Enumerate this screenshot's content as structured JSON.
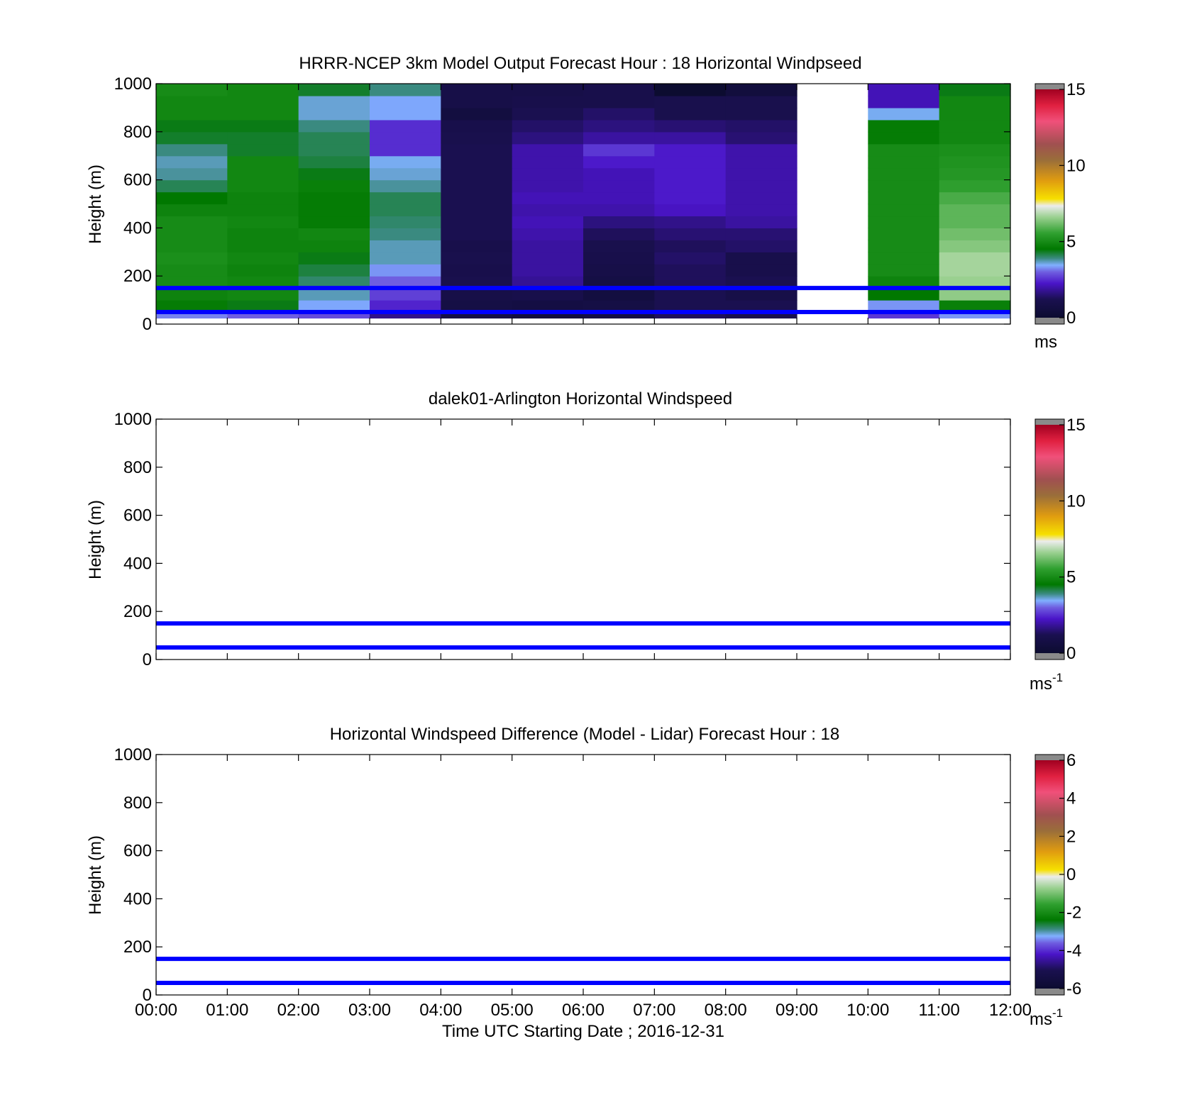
{
  "figure": {
    "x_tick_labels": [
      "00:00",
      "01:00",
      "02:00",
      "03:00",
      "04:00",
      "05:00",
      "06:00",
      "07:00",
      "08:00",
      "09:00",
      "10:00",
      "11:00",
      "12:00"
    ],
    "x_label": "Time UTC  Starting Date ; 2016-12-31",
    "reference_line_color": "#0000ff"
  },
  "chart_data": [
    {
      "type": "heatmap",
      "title": "HRRR-NCEP 3km Model Output   Forecast Hour : 18 Horizontal Windpseed",
      "ylabel": "Height (m)",
      "ylim": [
        0,
        1000
      ],
      "y_ticks": [
        "0",
        "200",
        "400",
        "600",
        "800",
        "1000"
      ],
      "xlim_hours": [
        0,
        12
      ],
      "colorbar": {
        "ticks": [
          "0",
          "5",
          "10",
          "15"
        ],
        "range": [
          0,
          15
        ],
        "unit": "ms",
        "unit_sup": ""
      },
      "reference_lines_m": [
        50,
        150
      ],
      "x_hours": [
        0,
        1,
        2,
        3,
        4,
        5,
        6,
        7,
        8,
        9,
        10,
        11
      ],
      "y_levels_m": [
        25,
        75,
        125,
        175,
        225,
        275,
        325,
        375,
        425,
        475,
        525,
        575,
        625,
        675,
        725,
        775,
        825,
        875,
        925,
        975
      ],
      "values_ms": [
        [
          3.2,
          3.0,
          2.8,
          1.7,
          0.8,
          0.5,
          0.7,
          1.3,
          1.1,
          null,
          2.6,
          3.3
        ],
        [
          4.6,
          4.4,
          3.4,
          2.4,
          0.8,
          0.7,
          0.8,
          1.2,
          1.2,
          null,
          3.3,
          4.7
        ],
        [
          4.8,
          4.9,
          3.7,
          2.7,
          0.9,
          1.0,
          0.6,
          1.2,
          0.9,
          null,
          4.5,
          6.5
        ],
        [
          5.0,
          4.9,
          4.0,
          3.0,
          1.1,
          1.8,
          0.8,
          1.3,
          1.2,
          null,
          4.8,
          6.6
        ],
        [
          5.0,
          4.8,
          4.2,
          3.3,
          1.0,
          1.9,
          0.9,
          1.3,
          1.0,
          null,
          5.0,
          6.7
        ],
        [
          5.1,
          4.9,
          4.4,
          3.7,
          1.1,
          1.9,
          1.0,
          1.4,
          1.0,
          null,
          5.0,
          6.7
        ],
        [
          5.0,
          4.8,
          4.8,
          3.7,
          1.0,
          1.9,
          1.1,
          1.3,
          1.4,
          null,
          5.0,
          6.4
        ],
        [
          5.0,
          4.8,
          4.9,
          3.9,
          1.2,
          2.0,
          1.3,
          1.5,
          1.5,
          null,
          5.0,
          6.2
        ],
        [
          5.0,
          4.9,
          4.6,
          4.0,
          1.2,
          2.1,
          1.6,
          1.7,
          1.9,
          null,
          5.0,
          6.0
        ],
        [
          4.8,
          4.8,
          4.6,
          4.1,
          1.2,
          2.0,
          2.0,
          2.2,
          2.0,
          null,
          5.0,
          6.0
        ],
        [
          4.5,
          4.8,
          4.6,
          4.1,
          1.2,
          2.1,
          2.1,
          2.3,
          2.0,
          null,
          5.0,
          5.8
        ],
        [
          4.1,
          4.9,
          4.7,
          3.8,
          1.2,
          2.0,
          2.1,
          2.3,
          2.0,
          null,
          5.0,
          5.5
        ],
        [
          3.8,
          4.9,
          4.4,
          3.6,
          1.2,
          2.0,
          2.1,
          2.3,
          2.0,
          null,
          5.0,
          5.3
        ],
        [
          3.7,
          4.9,
          4.2,
          3.5,
          1.2,
          2.0,
          2.3,
          2.3,
          2.0,
          null,
          5.0,
          5.2
        ],
        [
          3.9,
          4.3,
          4.1,
          2.5,
          1.2,
          2.0,
          2.6,
          2.3,
          2.0,
          null,
          5.0,
          5.1
        ],
        [
          4.3,
          4.3,
          4.1,
          2.5,
          1.1,
          1.6,
          1.9,
          1.9,
          1.5,
          null,
          4.6,
          4.9
        ],
        [
          4.4,
          4.4,
          3.9,
          2.5,
          1.0,
          1.4,
          1.6,
          1.5,
          1.4,
          null,
          4.6,
          4.9
        ],
        [
          4.9,
          4.9,
          3.6,
          3.4,
          0.6,
          1.2,
          1.4,
          1.1,
          1.1,
          null,
          3.5,
          4.9
        ],
        [
          4.9,
          4.9,
          3.6,
          3.4,
          0.9,
          1.0,
          1.0,
          1.1,
          1.1,
          null,
          2.1,
          4.9
        ],
        [
          5.0,
          4.9,
          4.3,
          3.9,
          0.9,
          0.9,
          1.0,
          0.0,
          0.5,
          null,
          2.1,
          4.4
        ]
      ]
    },
    {
      "type": "heatmap",
      "title": "dalek01-Arlington  Horizontal Windspeed",
      "ylabel": "Height (m)",
      "ylim": [
        0,
        1000
      ],
      "y_ticks": [
        "0",
        "200",
        "400",
        "600",
        "800",
        "1000"
      ],
      "xlim_hours": [
        0,
        12
      ],
      "colorbar": {
        "ticks": [
          "0",
          "5",
          "10",
          "15"
        ],
        "range": [
          0,
          15
        ],
        "unit": "ms",
        "unit_sup": "-1"
      },
      "reference_lines_m": [
        50,
        150
      ],
      "values_ms": []
    },
    {
      "type": "heatmap",
      "title": "Horizontal Windspeed Difference (Model - Lidar) Forecast Hour : 18",
      "ylabel": "Height (m)",
      "ylim": [
        0,
        1000
      ],
      "y_ticks": [
        "0",
        "200",
        "400",
        "600",
        "800",
        "1000"
      ],
      "xlim_hours": [
        0,
        12
      ],
      "colorbar": {
        "ticks": [
          "-6",
          "-4",
          "-2",
          "0",
          "2",
          "4",
          "6"
        ],
        "range": [
          -6,
          6
        ],
        "unit": "ms",
        "unit_sup": "-1"
      },
      "reference_lines_m": [
        50,
        150
      ],
      "values_ms": []
    }
  ]
}
